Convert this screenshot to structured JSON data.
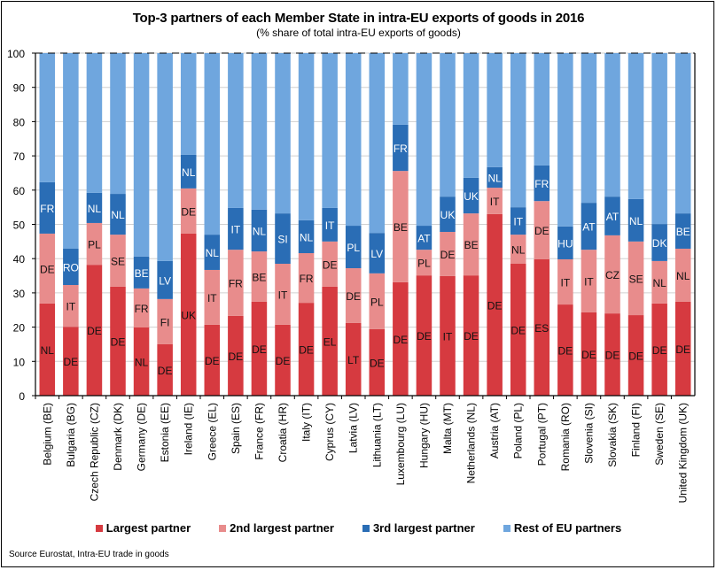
{
  "chart_data": {
    "type": "bar",
    "stacked": true,
    "title": "Top-3 partners of each Member State in intra-EU exports of goods in 2016",
    "subtitle": "(% share of total intra-EU exports of goods)",
    "xlabel": "",
    "ylabel": "",
    "ylim": [
      0,
      100
    ],
    "yticks": [
      "0",
      "10",
      "20",
      "30",
      "40",
      "50",
      "60",
      "70",
      "80",
      "90",
      "100"
    ],
    "grid": true,
    "legend_position": "bottom",
    "categories": [
      "Belgium (BE)",
      "Bulgaria (BG)",
      "Czech Republic (CZ)",
      "Denmark (DK)",
      "Germany (DE)",
      "Estonia (EE)",
      "Ireland (IE)",
      "Greece (EL)",
      "Spain (ES)",
      "France (FR)",
      "Croatia (HR)",
      "Italy (IT)",
      "Cyprus (CY)",
      "Latvia (LV)",
      "Lithuania (LT)",
      "Luxembourg (LU)",
      "Hungary (HU)",
      "Malta (MT)",
      "Netherlands (NL)",
      "Austria (AT)",
      "Poland (PL)",
      "Portugal (PT)",
      "Romania (RO)",
      "Slovenia (SI)",
      "Slovakia (SK)",
      "Finland (FI)",
      "Sweden (SE)",
      "United Kingdom (UK)"
    ],
    "series": [
      {
        "name": "Largest partner",
        "color": "#d63a40",
        "values": [
          26.9,
          20.1,
          38.2,
          31.8,
          19.9,
          15.0,
          47.3,
          20.7,
          23.3,
          27.4,
          20.7,
          27.1,
          31.8,
          21.2,
          19.4,
          33.1,
          35.1,
          34.9,
          35.1,
          53.0,
          38.5,
          39.8,
          26.6,
          24.3,
          24.0,
          23.5,
          26.9,
          27.4
        ],
        "labels": [
          "NL",
          "DE",
          "DE",
          "DE",
          "NL",
          "DE",
          "UK",
          "DE",
          "DE",
          "DE",
          "DE",
          "DE",
          "EL",
          "LT",
          "DE",
          "DE",
          "DE",
          "IT",
          "DE",
          "DE",
          "DE",
          "ES",
          "DE",
          "DE",
          "DE",
          "DE",
          "DE",
          "DE"
        ]
      },
      {
        "name": "2nd largest partner",
        "color": "#e88c8c",
        "values": [
          20.4,
          12.2,
          12.2,
          15.2,
          11.4,
          13.2,
          13.2,
          16.0,
          19.3,
          14.7,
          17.8,
          14.5,
          13.2,
          16.0,
          16.3,
          32.5,
          7.5,
          12.9,
          18.1,
          7.7,
          8.5,
          17.0,
          13.2,
          18.3,
          22.8,
          21.5,
          12.4,
          15.5
        ],
        "labels": [
          "DE",
          "IT",
          "PL",
          "SE",
          "FR",
          "FI",
          "DE",
          "IT",
          "FR",
          "BE",
          "IT",
          "FR",
          "DE",
          "DE",
          "PL",
          "BE",
          "PL",
          "DE",
          "BE",
          "IT",
          "NL",
          "DE",
          "IT",
          "IT",
          "CZ",
          "SE",
          "NL",
          "NL"
        ]
      },
      {
        "name": "3rd largest partner",
        "color": "#2a6db5",
        "values": [
          15.0,
          10.6,
          8.8,
          11.9,
          9.3,
          11.1,
          9.8,
          10.3,
          12.2,
          12.2,
          14.7,
          9.6,
          9.8,
          12.4,
          11.8,
          13.5,
          7.0,
          10.3,
          10.4,
          6.0,
          8.0,
          10.4,
          9.6,
          13.7,
          11.3,
          12.4,
          10.8,
          10.3
        ],
        "labels": [
          "FR",
          "RO",
          "NL",
          "NL",
          "BE",
          "LV",
          "NL",
          "NL",
          "IT",
          "NL",
          "SI",
          "NL",
          "IT",
          "PL",
          "LV",
          "FR",
          "AT",
          "UK",
          "UK",
          "NL",
          "IT",
          "FR",
          "HU",
          "AT",
          "AT",
          "NL",
          "DK",
          "BE"
        ]
      },
      {
        "name": "Rest of EU partners",
        "color": "#6fa6de",
        "values": [
          37.7,
          57.1,
          40.8,
          41.1,
          59.4,
          60.7,
          29.7,
          53.0,
          45.2,
          45.7,
          46.8,
          48.8,
          45.2,
          50.4,
          52.5,
          20.9,
          50.4,
          41.9,
          36.4,
          33.3,
          45.0,
          32.8,
          50.6,
          43.7,
          41.9,
          42.6,
          49.9,
          46.8
        ],
        "labels": []
      }
    ]
  },
  "source": "Source Eurostat, Intra-EU trade in goods"
}
